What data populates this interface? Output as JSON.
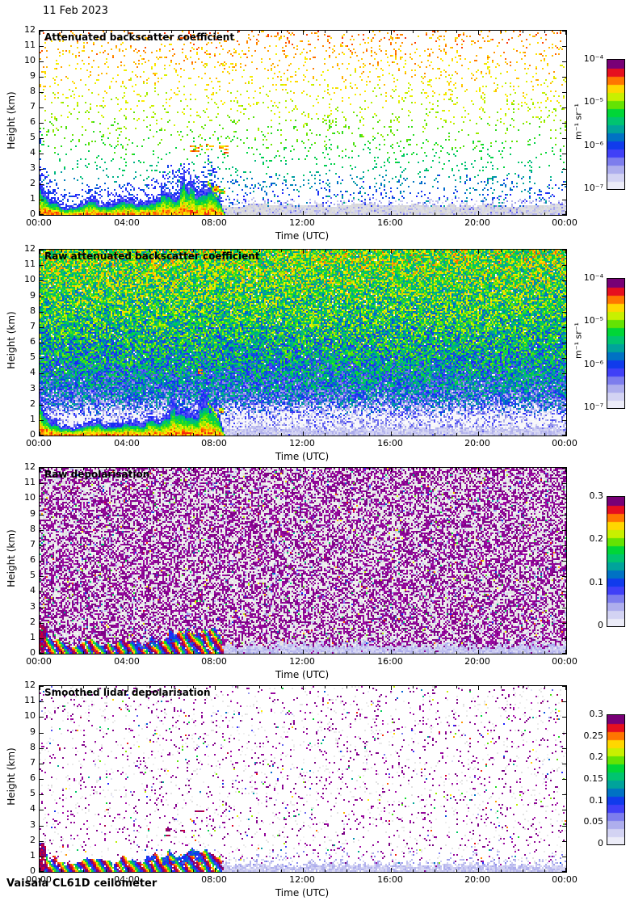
{
  "page": {
    "date_label": "11 Feb 2023",
    "footer": "Vaisala CL61D ceilometer"
  },
  "shared": {
    "xlim_hours": [
      0,
      24
    ],
    "ylim_km": [
      0,
      12
    ],
    "x_tick_hours": [
      0,
      4,
      8,
      12,
      16,
      20,
      24
    ],
    "x_tick_labels": [
      "00:00",
      "04:00",
      "08:00",
      "12:00",
      "16:00",
      "20:00",
      "00:00"
    ],
    "x_minor_step_hours": 1,
    "y_tick_km": [
      0,
      1,
      2,
      3,
      4,
      5,
      6,
      7,
      8,
      9,
      10,
      11,
      12
    ],
    "signal_end_hour": 8.3,
    "boundary_layer_top_km": [
      [
        0,
        3.0
      ],
      [
        0.15,
        1.6
      ],
      [
        0.4,
        1.15
      ],
      [
        0.8,
        0.85
      ],
      [
        1.1,
        0.55
      ],
      [
        1.6,
        0.5
      ],
      [
        2.1,
        0.8
      ],
      [
        2.5,
        0.92
      ],
      [
        2.9,
        0.68
      ],
      [
        3.3,
        0.6
      ],
      [
        3.8,
        0.95
      ],
      [
        4.3,
        0.9
      ],
      [
        4.7,
        0.65
      ],
      [
        5.1,
        1.1
      ],
      [
        5.5,
        1.0
      ],
      [
        5.9,
        1.6
      ],
      [
        6.2,
        1.3
      ],
      [
        6.6,
        1.75
      ],
      [
        7.0,
        1.35
      ],
      [
        7.4,
        1.3
      ],
      [
        7.7,
        1.85
      ],
      [
        8.0,
        1.4
      ],
      [
        8.25,
        1.0
      ],
      [
        8.3,
        0.6
      ],
      [
        8.45,
        0.0
      ]
    ],
    "colormap_stops": [
      [
        0.0,
        236,
        236,
        248
      ],
      [
        0.08,
        206,
        206,
        242
      ],
      [
        0.16,
        158,
        158,
        234
      ],
      [
        0.24,
        92,
        92,
        240
      ],
      [
        0.3,
        30,
        30,
        255
      ],
      [
        0.37,
        0,
        90,
        215
      ],
      [
        0.45,
        0,
        155,
        165
      ],
      [
        0.53,
        0,
        195,
        115
      ],
      [
        0.6,
        0,
        214,
        55
      ],
      [
        0.67,
        105,
        228,
        0
      ],
      [
        0.73,
        196,
        240,
        0
      ],
      [
        0.78,
        255,
        238,
        0
      ],
      [
        0.84,
        255,
        168,
        0
      ],
      [
        0.895,
        255,
        64,
        0
      ],
      [
        0.945,
        222,
        0,
        40
      ],
      [
        1.0,
        120,
        0,
        118
      ]
    ]
  },
  "chart_data": [
    {
      "id": "attenuated_backscatter",
      "type": "heatmap",
      "title": "Attenuated backscatter coefficient",
      "xlabel": "Time (UTC)",
      "ylabel": "Height (km)",
      "colorbar": {
        "scale": "log",
        "range_min": 1e-07,
        "range_max": 0.0001,
        "ticks": [
          0.0001,
          1e-05,
          1e-06,
          1e-07
        ],
        "tick_labels": [
          "10⁻⁴",
          "10⁻⁵",
          "10⁻⁶",
          "10⁻⁷"
        ],
        "unit": "m⁻¹ sr⁻¹"
      },
      "render": {
        "seed": 11,
        "speckle_density_bottom": 0.05,
        "speckle_density_top": 0.095
      },
      "features": [
        {
          "t": [
            6.85,
            7.4
          ],
          "z": [
            4.1,
            4.5
          ],
          "density": 0.35,
          "v": [
            0.78,
            0.92
          ]
        },
        {
          "t": [
            7.55,
            8.75
          ],
          "z": [
            4.0,
            4.6
          ],
          "density": 0.28,
          "v": [
            0.76,
            0.92
          ]
        },
        {
          "t": [
            7.95,
            8.5
          ],
          "z": [
            1.35,
            1.9
          ],
          "density": 0.6,
          "v": [
            0.5,
            0.97
          ]
        },
        {
          "t": [
            7.62,
            8.2
          ],
          "slant": {
            "z0": 2.25,
            "z1": 0.95
          },
          "thickness": 0.15,
          "density": 0.85,
          "v": [
            0.45,
            0.8
          ]
        }
      ]
    },
    {
      "id": "raw_attenuated_backscatter",
      "type": "heatmap",
      "title": "Raw attenuated backscatter coefficient",
      "xlabel": "Time (UTC)",
      "ylabel": "Height (km)",
      "colorbar": {
        "scale": "log",
        "range_min": 1e-07,
        "range_max": 0.0001,
        "ticks": [
          0.0001,
          1e-05,
          1e-06,
          1e-07
        ],
        "tick_labels": [
          "10⁻⁴",
          "10⁻⁵",
          "10⁻⁶",
          "10⁻⁷"
        ],
        "unit": "m⁻¹ sr⁻¹"
      },
      "render": {
        "seed": 22,
        "noise_coverage": 0.985
      },
      "features": [
        {
          "t": [
            2.65,
            2.85
          ],
          "z": [
            4.0,
            4.25
          ],
          "density": 0.7,
          "v": [
            0.8,
            0.92
          ]
        },
        {
          "t": [
            7.2,
            7.45
          ],
          "z": [
            4.0,
            4.3
          ],
          "density": 0.7,
          "v": [
            0.8,
            0.95
          ]
        },
        {
          "t": [
            8.0,
            8.4
          ],
          "z": [
            1.35,
            1.8
          ],
          "density": 0.5,
          "v": [
            0.6,
            0.97
          ]
        },
        {
          "t": [
            7.62,
            8.2
          ],
          "slant": {
            "z0": 2.25,
            "z1": 0.95
          },
          "thickness": 0.15,
          "density": 0.85,
          "v": [
            0.45,
            0.8
          ]
        }
      ]
    },
    {
      "id": "raw_depolarisation",
      "type": "heatmap",
      "title": "Raw depolarisation",
      "xlabel": "Time (UTC)",
      "ylabel": "Height (km)",
      "colorbar": {
        "scale": "linear",
        "range_min": 0,
        "range_max": 0.3,
        "ticks": [
          0.3,
          0.2,
          0.1,
          0
        ],
        "tick_labels": [
          "0.3",
          "0.2",
          "0.1",
          "0"
        ],
        "unit": ""
      },
      "render": {
        "seed": 33,
        "magenta_fraction": 0.46,
        "color_dot_fraction": 0.025,
        "lavender_fraction": 0.045,
        "structure_gap": 0.1
      },
      "features": []
    },
    {
      "id": "smoothed_lidar_depolarisation",
      "type": "heatmap",
      "title": "Smoothed lidar depolarisation",
      "xlabel": "Time (UTC)",
      "ylabel": "Height (km)",
      "colorbar": {
        "scale": "linear",
        "range_min": 0,
        "range_max": 0.3,
        "ticks": [
          0.3,
          0.25,
          0.2,
          0.15,
          0.1,
          0.05,
          0
        ],
        "tick_labels": [
          "0.3",
          "0.25",
          "0.2",
          "0.15",
          "0.1",
          "0.05",
          "0"
        ],
        "unit": ""
      },
      "render": {
        "seed": 44,
        "magenta_fraction": 0.042,
        "color_dot_fraction": 0.01,
        "gray_fraction": 0.033,
        "structure_gap": 0.06
      },
      "features": [
        {
          "t": [
            7.1,
            7.5
          ],
          "z": [
            3.9,
            4.4
          ],
          "density": 0.25,
          "v": [
            0.95,
            1.0
          ]
        },
        {
          "t": [
            5.4,
            6.6
          ],
          "z": [
            2.2,
            3.1
          ],
          "density": 0.08,
          "v": [
            0.95,
            1.0
          ]
        }
      ]
    }
  ]
}
